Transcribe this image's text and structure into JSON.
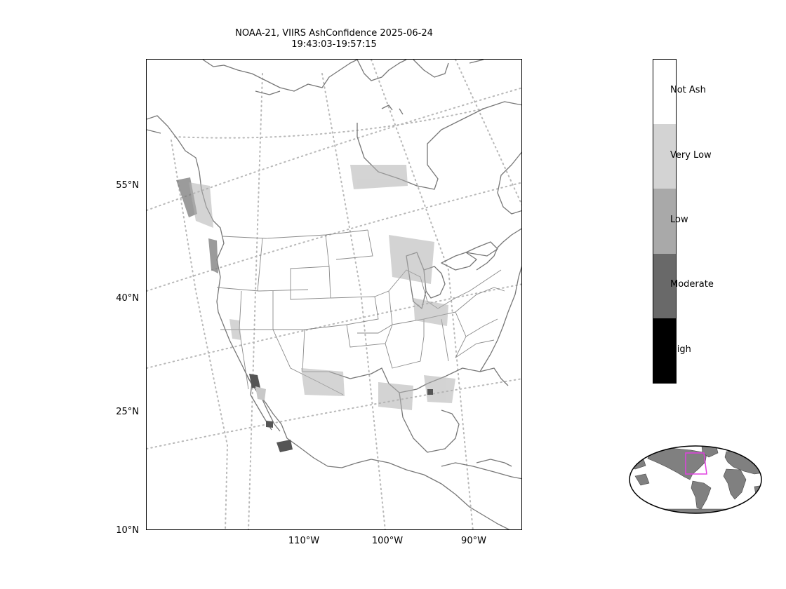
{
  "title": {
    "line1": "NOAA-21, VIIRS AshConfidence 2025-06-24",
    "line2": "19:43:03-19:57:15"
  },
  "map": {
    "latitude_labels": [
      "55°N",
      "40°N",
      "25°N",
      "10°N"
    ],
    "longitude_labels": [
      "110°W",
      "100°W",
      "90°W"
    ],
    "gridlines": "dotted",
    "region": "North America"
  },
  "colorbar": {
    "categories": [
      {
        "label": "Not Ash",
        "color": "#ffffff"
      },
      {
        "label": "Very Low",
        "color": "#d3d3d3"
      },
      {
        "label": "Low",
        "color": "#a9a9a9"
      },
      {
        "label": "Moderate",
        "color": "#696969"
      },
      {
        "label": "High",
        "color": "#000000"
      }
    ]
  },
  "inset": {
    "description_icon": "globe-locator-icon",
    "highlight_color": "#e040e0",
    "land_color": "#808080"
  }
}
